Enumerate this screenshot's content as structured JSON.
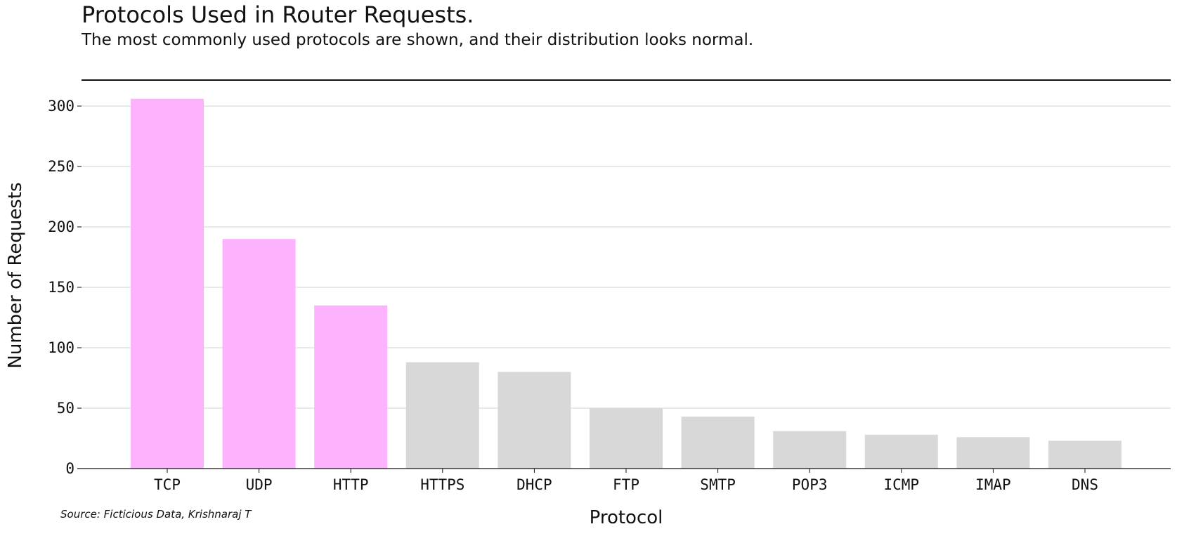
{
  "chart_data": {
    "type": "bar",
    "title": "Protocols Used in Router Requests.",
    "subtitle": "The most commonly used protocols are shown, and their distribution looks normal.",
    "xlabel": "Protocol",
    "ylabel": "Number of Requests",
    "categories": [
      "TCP",
      "UDP",
      "HTTP",
      "HTTPS",
      "DHCP",
      "FTP",
      "SMTP",
      "POP3",
      "ICMP",
      "IMAP",
      "DNS"
    ],
    "values": [
      306,
      190,
      135,
      88,
      80,
      50,
      43,
      31,
      28,
      26,
      23
    ],
    "highlight": [
      true,
      true,
      true,
      false,
      false,
      false,
      false,
      false,
      false,
      false,
      false
    ],
    "ylim": [
      0,
      320
    ],
    "yticks": [
      0,
      50,
      100,
      150,
      200,
      250,
      300
    ],
    "grid": "horizontal",
    "source": "Source: Ficticious Data, Krishnaraj T"
  },
  "colors": {
    "highlight": "#fdb2fd",
    "muted": "#d8d8d8",
    "grid": "#d3d3d3",
    "axis": "#111111"
  }
}
